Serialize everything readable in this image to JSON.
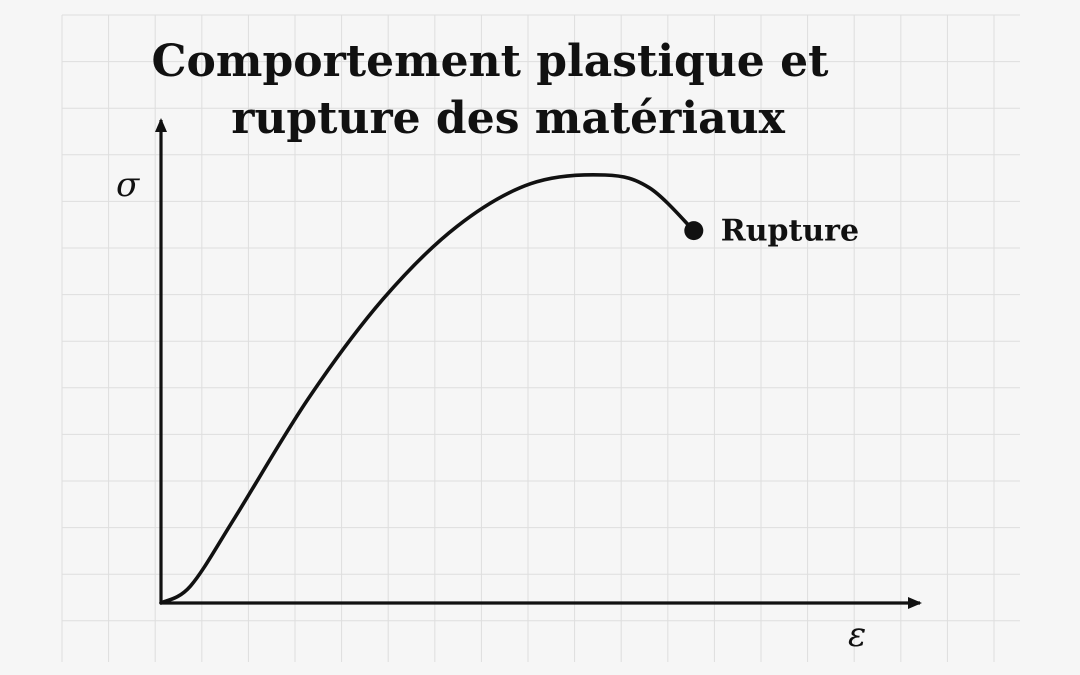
{
  "chart_data": {
    "type": "line",
    "title": "Comportement plastique et rupture des matériaux",
    "title_lines": [
      "Comportement plastique et",
      "rupture des matériaux"
    ],
    "xlabel": "ε",
    "ylabel": "σ",
    "grid": true,
    "legend": "none",
    "series": [
      {
        "points": [
          [
            0.0,
            0.0
          ],
          [
            0.04,
            0.04
          ],
          [
            0.1,
            0.2
          ],
          [
            0.2,
            0.48
          ],
          [
            0.3,
            0.71
          ],
          [
            0.4,
            0.88
          ],
          [
            0.5,
            0.98
          ],
          [
            0.6,
            1.0
          ],
          [
            0.66,
            0.97
          ],
          [
            0.72,
            0.87
          ]
        ]
      }
    ],
    "annotations": [
      {
        "text": "Rupture",
        "x": 0.72,
        "y": 0.87,
        "marker": "dot"
      }
    ]
  },
  "colors": {
    "background": "#f6f6f6",
    "grid": "#dedede",
    "ink": "#111111"
  }
}
